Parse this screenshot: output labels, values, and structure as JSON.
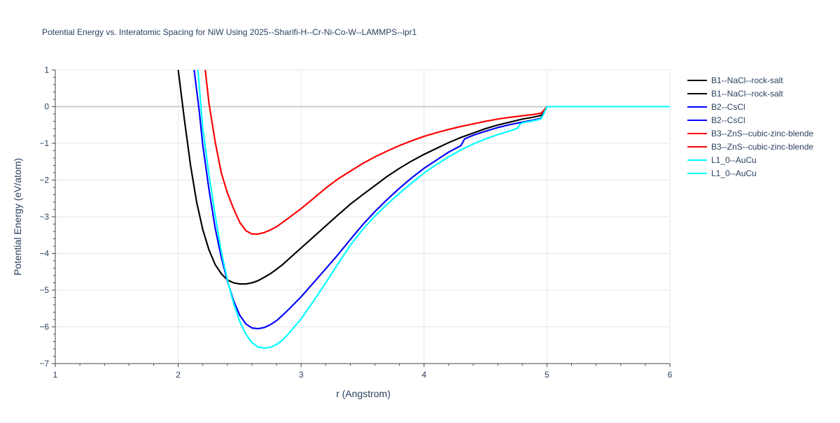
{
  "chart_data": {
    "type": "line",
    "title": "Potential Energy vs. Interatomic Spacing for NiW Using 2025--Sharifi-H--Cr-Ni-Co-W--LAMMPS--ipr1",
    "xlabel": "r (Angstrom)",
    "ylabel": "Potential Energy (eV/atom)",
    "xlim": [
      1,
      6
    ],
    "ylim": [
      -7,
      1
    ],
    "x_ticks": [
      1,
      2,
      3,
      4,
      5,
      6
    ],
    "y_ticks": [
      1,
      0,
      -1,
      -2,
      -3,
      -4,
      -5,
      -6,
      -7
    ],
    "x_tick_labels": [
      "1",
      "2",
      "3",
      "4",
      "5",
      "6"
    ],
    "y_tick_labels": [
      "1",
      "0",
      "−1",
      "−2",
      "−3",
      "−4",
      "−5",
      "−6",
      "−7"
    ],
    "grid": true,
    "legend_position": "right",
    "series": [
      {
        "name": "B1--NaCl--rock-salt",
        "color": "#000000",
        "x": [
          2.0,
          2.05,
          2.1,
          2.15,
          2.2,
          2.25,
          2.3,
          2.35,
          2.4,
          2.45,
          2.5,
          2.55,
          2.6,
          2.65,
          2.7,
          2.75,
          2.8,
          2.85,
          2.9,
          3.0,
          3.1,
          3.2,
          3.3,
          3.4,
          3.5,
          3.6,
          3.7,
          3.8,
          3.9,
          4.0,
          4.1,
          4.2,
          4.3,
          4.4,
          4.5,
          4.6,
          4.7,
          4.8,
          4.9,
          4.95,
          4.97,
          5.0,
          5.5,
          6.0
        ],
        "y": [
          1.0,
          -0.35,
          -1.6,
          -2.6,
          -3.35,
          -3.9,
          -4.3,
          -4.55,
          -4.72,
          -4.8,
          -4.83,
          -4.83,
          -4.8,
          -4.74,
          -4.65,
          -4.55,
          -4.43,
          -4.3,
          -4.15,
          -3.85,
          -3.55,
          -3.25,
          -2.95,
          -2.66,
          -2.4,
          -2.15,
          -1.9,
          -1.68,
          -1.48,
          -1.3,
          -1.14,
          -0.98,
          -0.84,
          -0.72,
          -0.6,
          -0.5,
          -0.42,
          -0.34,
          -0.28,
          -0.24,
          -0.18,
          0.0,
          0.0,
          0.0
        ]
      },
      {
        "name": "B1--NaCl--rock-salt",
        "color": "#000000",
        "x": [
          2.0,
          2.05,
          2.1,
          2.15,
          2.2,
          2.25,
          2.3,
          2.35,
          2.4,
          2.45,
          2.5,
          2.55,
          2.6,
          2.65,
          2.7,
          2.75,
          2.8,
          2.85,
          2.9,
          3.0,
          3.1,
          3.2,
          3.3,
          3.4,
          3.5,
          3.6,
          3.7,
          3.8,
          3.9,
          4.0,
          4.1,
          4.2,
          4.3,
          4.4,
          4.5,
          4.6,
          4.7,
          4.8,
          4.9,
          4.95,
          4.97,
          5.0,
          5.5,
          6.0
        ],
        "y": [
          1.0,
          -0.35,
          -1.6,
          -2.6,
          -3.35,
          -3.9,
          -4.3,
          -4.55,
          -4.72,
          -4.8,
          -4.83,
          -4.83,
          -4.8,
          -4.74,
          -4.65,
          -4.55,
          -4.43,
          -4.3,
          -4.15,
          -3.85,
          -3.55,
          -3.25,
          -2.95,
          -2.66,
          -2.4,
          -2.15,
          -1.9,
          -1.68,
          -1.48,
          -1.3,
          -1.14,
          -0.98,
          -0.84,
          -0.72,
          -0.6,
          -0.5,
          -0.42,
          -0.34,
          -0.28,
          -0.24,
          -0.18,
          0.0,
          0.0,
          0.0
        ]
      },
      {
        "name": "B2--CsCl",
        "color": "#0000ff",
        "x": [
          2.13,
          2.17,
          2.2,
          2.25,
          2.3,
          2.35,
          2.4,
          2.45,
          2.5,
          2.55,
          2.6,
          2.65,
          2.7,
          2.75,
          2.8,
          2.85,
          2.9,
          3.0,
          3.1,
          3.2,
          3.3,
          3.4,
          3.5,
          3.6,
          3.7,
          3.8,
          3.9,
          4.0,
          4.1,
          4.2,
          4.3,
          4.33,
          4.4,
          4.5,
          4.6,
          4.7,
          4.8,
          4.9,
          4.95,
          4.97,
          5.0,
          5.5,
          6.0
        ],
        "y": [
          1.0,
          -0.1,
          -1.05,
          -2.25,
          -3.3,
          -4.1,
          -4.75,
          -5.28,
          -5.68,
          -5.92,
          -6.03,
          -6.05,
          -6.02,
          -5.94,
          -5.83,
          -5.68,
          -5.52,
          -5.18,
          -4.8,
          -4.42,
          -4.03,
          -3.62,
          -3.22,
          -2.86,
          -2.53,
          -2.22,
          -1.94,
          -1.68,
          -1.46,
          -1.24,
          -1.06,
          -0.88,
          -0.78,
          -0.67,
          -0.57,
          -0.49,
          -0.42,
          -0.36,
          -0.32,
          -0.2,
          0.0,
          0.0,
          0.0
        ]
      },
      {
        "name": "B2--CsCl",
        "color": "#0000ff",
        "x": [
          2.13,
          2.17,
          2.2,
          2.25,
          2.3,
          2.35,
          2.4,
          2.45,
          2.5,
          2.55,
          2.6,
          2.65,
          2.7,
          2.75,
          2.8,
          2.85,
          2.9,
          3.0,
          3.1,
          3.2,
          3.3,
          3.4,
          3.5,
          3.6,
          3.7,
          3.8,
          3.9,
          4.0,
          4.1,
          4.2,
          4.3,
          4.33,
          4.4,
          4.5,
          4.6,
          4.7,
          4.8,
          4.9,
          4.95,
          4.97,
          5.0,
          5.5,
          6.0
        ],
        "y": [
          1.0,
          -0.1,
          -1.05,
          -2.25,
          -3.3,
          -4.1,
          -4.75,
          -5.28,
          -5.68,
          -5.92,
          -6.03,
          -6.05,
          -6.02,
          -5.94,
          -5.83,
          -5.68,
          -5.52,
          -5.18,
          -4.8,
          -4.42,
          -4.03,
          -3.62,
          -3.22,
          -2.86,
          -2.53,
          -2.22,
          -1.94,
          -1.68,
          -1.46,
          -1.24,
          -1.06,
          -0.88,
          -0.78,
          -0.67,
          -0.57,
          -0.49,
          -0.42,
          -0.36,
          -0.32,
          -0.2,
          0.0,
          0.0,
          0.0
        ]
      },
      {
        "name": "B3--ZnS--cubic-zinc-blende",
        "color": "#ff0000",
        "x": [
          2.22,
          2.25,
          2.3,
          2.35,
          2.4,
          2.45,
          2.5,
          2.55,
          2.6,
          2.65,
          2.7,
          2.75,
          2.8,
          2.85,
          2.9,
          3.0,
          3.1,
          3.2,
          3.3,
          3.4,
          3.5,
          3.6,
          3.7,
          3.8,
          3.9,
          4.0,
          4.1,
          4.2,
          4.3,
          4.4,
          4.5,
          4.6,
          4.7,
          4.8,
          4.9,
          4.95,
          4.97,
          5.0,
          5.5,
          6.0
        ],
        "y": [
          1.0,
          0.1,
          -0.95,
          -1.8,
          -2.35,
          -2.78,
          -3.15,
          -3.38,
          -3.47,
          -3.47,
          -3.43,
          -3.36,
          -3.27,
          -3.15,
          -3.03,
          -2.78,
          -2.5,
          -2.22,
          -1.97,
          -1.76,
          -1.55,
          -1.37,
          -1.21,
          -1.06,
          -0.93,
          -0.81,
          -0.71,
          -0.62,
          -0.54,
          -0.47,
          -0.4,
          -0.34,
          -0.29,
          -0.25,
          -0.21,
          -0.18,
          -0.12,
          0.0,
          0.0,
          0.0
        ]
      },
      {
        "name": "B3--ZnS--cubic-zinc-blende",
        "color": "#ff0000",
        "x": [
          2.22,
          2.25,
          2.3,
          2.35,
          2.4,
          2.45,
          2.5,
          2.55,
          2.6,
          2.65,
          2.7,
          2.75,
          2.8,
          2.85,
          2.9,
          3.0,
          3.1,
          3.2,
          3.3,
          3.4,
          3.5,
          3.6,
          3.7,
          3.8,
          3.9,
          4.0,
          4.1,
          4.2,
          4.3,
          4.4,
          4.5,
          4.6,
          4.7,
          4.8,
          4.9,
          4.95,
          4.97,
          5.0,
          5.5,
          6.0
        ],
        "y": [
          1.0,
          0.1,
          -0.95,
          -1.8,
          -2.35,
          -2.78,
          -3.15,
          -3.38,
          -3.47,
          -3.47,
          -3.43,
          -3.36,
          -3.27,
          -3.15,
          -3.03,
          -2.78,
          -2.5,
          -2.22,
          -1.97,
          -1.76,
          -1.55,
          -1.37,
          -1.21,
          -1.06,
          -0.93,
          -0.81,
          -0.71,
          -0.62,
          -0.54,
          -0.47,
          -0.4,
          -0.34,
          -0.29,
          -0.25,
          -0.21,
          -0.18,
          -0.12,
          0.0,
          0.0,
          0.0
        ]
      },
      {
        "name": "L1_0--AuCu",
        "color": "#00ffff",
        "x": [
          2.16,
          2.2,
          2.25,
          2.3,
          2.35,
          2.4,
          2.45,
          2.5,
          2.55,
          2.6,
          2.65,
          2.7,
          2.75,
          2.8,
          2.85,
          2.9,
          3.0,
          3.1,
          3.2,
          3.3,
          3.4,
          3.5,
          3.6,
          3.7,
          3.8,
          3.9,
          4.0,
          4.1,
          4.2,
          4.3,
          4.4,
          4.5,
          4.6,
          4.7,
          4.76,
          4.78,
          4.8,
          4.9,
          4.95,
          4.97,
          5.0,
          5.5,
          6.0
        ],
        "y": [
          1.0,
          -0.6,
          -1.85,
          -2.95,
          -3.95,
          -4.72,
          -5.35,
          -5.85,
          -6.2,
          -6.43,
          -6.55,
          -6.58,
          -6.56,
          -6.48,
          -6.35,
          -6.18,
          -5.78,
          -5.3,
          -4.8,
          -4.28,
          -3.78,
          -3.35,
          -2.98,
          -2.66,
          -2.36,
          -2.08,
          -1.81,
          -1.58,
          -1.37,
          -1.18,
          -1.02,
          -0.88,
          -0.76,
          -0.66,
          -0.59,
          -0.48,
          -0.44,
          -0.38,
          -0.34,
          -0.22,
          0.0,
          0.0,
          0.0
        ]
      },
      {
        "name": "L1_0--AuCu",
        "color": "#00ffff",
        "x": [
          2.16,
          2.2,
          2.25,
          2.3,
          2.35,
          2.4,
          2.45,
          2.5,
          2.55,
          2.6,
          2.65,
          2.7,
          2.75,
          2.8,
          2.85,
          2.9,
          3.0,
          3.1,
          3.2,
          3.3,
          3.4,
          3.5,
          3.6,
          3.7,
          3.8,
          3.9,
          4.0,
          4.1,
          4.2,
          4.3,
          4.4,
          4.5,
          4.6,
          4.7,
          4.76,
          4.78,
          4.8,
          4.9,
          4.95,
          4.97,
          5.0,
          5.5,
          6.0
        ],
        "y": [
          1.0,
          -0.6,
          -1.85,
          -2.95,
          -3.95,
          -4.72,
          -5.35,
          -5.85,
          -6.2,
          -6.43,
          -6.55,
          -6.58,
          -6.56,
          -6.48,
          -6.35,
          -6.18,
          -5.78,
          -5.3,
          -4.8,
          -4.28,
          -3.78,
          -3.35,
          -2.98,
          -2.66,
          -2.36,
          -2.08,
          -1.81,
          -1.58,
          -1.37,
          -1.18,
          -1.02,
          -0.88,
          -0.76,
          -0.66,
          -0.59,
          -0.48,
          -0.44,
          -0.38,
          -0.34,
          -0.22,
          0.0,
          0.0,
          0.0
        ]
      }
    ]
  }
}
